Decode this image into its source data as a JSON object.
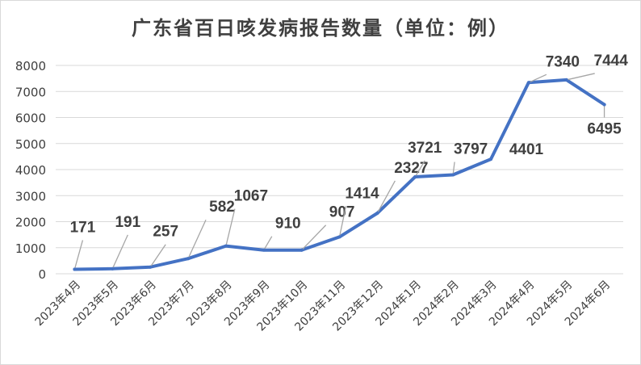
{
  "chart_data": {
    "type": "line",
    "title": "广东省百日咳发病报告数量（单位：例）",
    "xlabel": "",
    "ylabel": "",
    "categories": [
      "2023年4月",
      "2023年5月",
      "2023年6月",
      "2023年7月",
      "2023年8月",
      "2023年9月",
      "2023年10月",
      "2023年11月",
      "2023年12月",
      "2024年1月",
      "2024年2月",
      "2024年3月",
      "2024年4月",
      "2024年5月",
      "2024年6月"
    ],
    "values": [
      171,
      191,
      257,
      582,
      1067,
      910,
      907,
      1414,
      2327,
      3721,
      3797,
      4401,
      7340,
      7444,
      6495
    ],
    "data_labels": [
      "171",
      "191",
      "257",
      "582",
      "1067",
      "910",
      "907",
      "1414",
      "2327",
      "3721",
      "3797",
      "4401",
      "7340",
      "7444",
      "6495"
    ],
    "ylim": [
      0,
      8000
    ],
    "yticks": [
      0,
      1000,
      2000,
      3000,
      4000,
      5000,
      6000,
      7000,
      8000
    ],
    "ytick_labels": [
      "0",
      "1000",
      "2000",
      "3000",
      "4000",
      "5000",
      "6000",
      "7000",
      "8000"
    ],
    "grid": "horizontal",
    "legend": "none",
    "line_color": "#4472C4",
    "grid_color": "#d9d9d9",
    "label_color": "#404040"
  }
}
